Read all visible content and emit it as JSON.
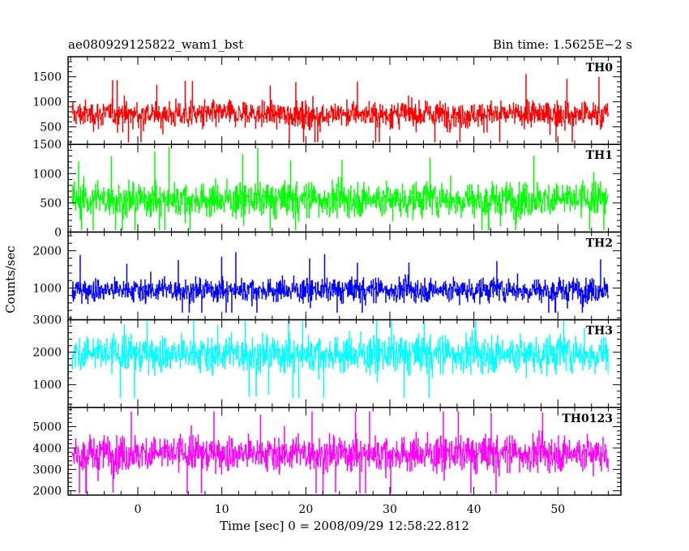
{
  "header": {
    "title": "ae080929125822_wam1_bst",
    "bin_time": "Bin time: 1.5625E−2 s"
  },
  "chart_data": {
    "type": "line",
    "xlabel": "Time [sec] 0 = 2008/09/29 12:58:22.812",
    "ylabel": "Counts/sec",
    "xlim": [
      -8.3,
      57.5
    ],
    "data_xrange": [
      -7.8,
      56.0
    ],
    "x_ticks": [
      0,
      10,
      20,
      30,
      40,
      50
    ],
    "grid": false,
    "panels": [
      {
        "name": "TH0",
        "color": "#ff0000",
        "ylim": [
          150,
          1900
        ],
        "y_ticks": [
          500,
          1000,
          1500
        ],
        "stats": {
          "mean": 750,
          "sd": 210,
          "min": 200,
          "max": 1750
        }
      },
      {
        "name": "TH1",
        "color": "#00ff00",
        "ylim": [
          0,
          1500
        ],
        "y_ticks": [
          0,
          500,
          1000,
          1500
        ],
        "stats": {
          "mean": 560,
          "sd": 240,
          "min": 40,
          "max": 1450
        }
      },
      {
        "name": "TH2",
        "color": "#0000ff",
        "ylim": [
          150,
          2500
        ],
        "y_ticks": [
          1000,
          2000
        ],
        "stats": {
          "mean": 950,
          "sd": 260,
          "min": 350,
          "max": 2350
        }
      },
      {
        "name": "TH3",
        "color": "#00ffff",
        "ylim": [
          300,
          3000
        ],
        "y_ticks": [
          1000,
          2000,
          3000
        ],
        "stats": {
          "mean": 1950,
          "sd": 470,
          "min": 600,
          "max": 2950
        }
      },
      {
        "name": "TH0123",
        "color": "#ff00ff",
        "ylim": [
          1800,
          5900
        ],
        "y_ticks": [
          2000,
          3000,
          4000,
          5000
        ],
        "stats": {
          "mean": 3750,
          "sd": 680,
          "min": 1900,
          "max": 5700
        }
      }
    ]
  }
}
